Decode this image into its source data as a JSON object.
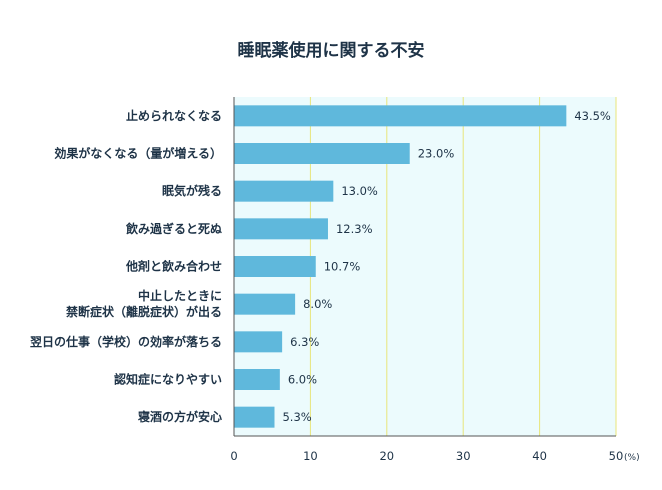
{
  "chart_data": {
    "type": "bar",
    "orientation": "horizontal",
    "title": "睡眠薬使用に関する不安",
    "categories": [
      [
        "止められなくなる"
      ],
      [
        "効果がなくなる（量が増える）"
      ],
      [
        "眠気が残る"
      ],
      [
        "飲み過ぎると死ぬ"
      ],
      [
        "他剤と飲み合わせ"
      ],
      [
        "中止したときに",
        "禁断症状（離脱症状）が出る"
      ],
      [
        "翌日の仕事（学校）の効率が落ちる"
      ],
      [
        "認知症になりやすい"
      ],
      [
        "寝酒の方が安心"
      ]
    ],
    "values": [
      43.5,
      23.0,
      13.0,
      12.3,
      10.7,
      8.0,
      6.3,
      6.0,
      5.3
    ],
    "value_labels": [
      "43.5%",
      "23.0%",
      "13.0%",
      "12.3%",
      "10.7%",
      "8.0%",
      "6.3%",
      "6.0%",
      "5.3%"
    ],
    "xlim": [
      0,
      50
    ],
    "xticks": [
      "0",
      "10",
      "20",
      "30",
      "40",
      "50"
    ],
    "x_unit": "(%)",
    "grid": true,
    "colors": {
      "bar": "#5fb8dc",
      "plot_bg": "#ecfbfd",
      "grid": "#e8e57a",
      "axis": "#555555"
    }
  }
}
